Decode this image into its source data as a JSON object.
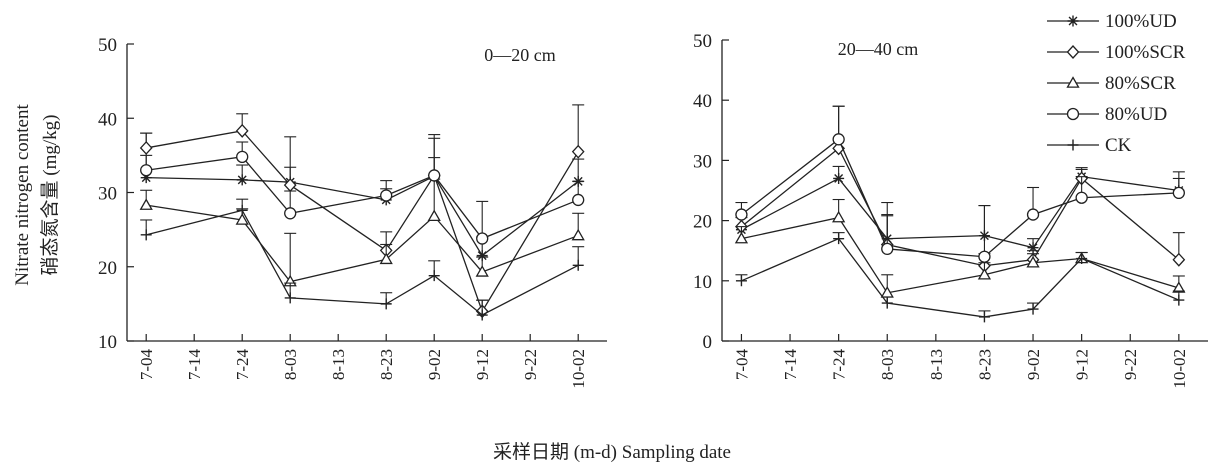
{
  "figure": {
    "ylabel_en": "Nitrate nitrogen content",
    "ylabel_cn": "硝态氮含量 (mg/kg)",
    "xlabel": "采样日期 (m-d) Sampling date"
  },
  "legend": [
    {
      "name": "100%UD",
      "marker": "asterisk"
    },
    {
      "name": "100%SCR",
      "marker": "diamond"
    },
    {
      "name": "80%SCR",
      "marker": "triangle"
    },
    {
      "name": "80%UD",
      "marker": "circle"
    },
    {
      "name": "CK",
      "marker": "plus"
    }
  ],
  "chart_data": [
    {
      "type": "line",
      "annotation": "0—20 cm",
      "x": [
        "7-04",
        "7-14",
        "7-24",
        "8-03",
        "8-13",
        "8-23",
        "9-02",
        "9-12",
        "9-22",
        "10-02"
      ],
      "ylim": [
        10,
        50
      ],
      "yticks": [
        10,
        20,
        30,
        40,
        50
      ],
      "series": [
        {
          "name": "100%UD",
          "marker": "asterisk",
          "points": [
            [
              "7-04",
              32
            ],
            [
              "7-24",
              31.7
            ],
            [
              "8-03",
              31.4
            ],
            [
              "8-23",
              29
            ],
            [
              "9-02",
              32.2
            ],
            [
              "9-12",
              21.5
            ],
            [
              "10-02",
              31.5
            ]
          ],
          "err": [
            6,
            2,
            2,
            1.5,
            2.5,
            2.5,
            3
          ]
        },
        {
          "name": "100%SCR",
          "marker": "diamond",
          "points": [
            [
              "7-04",
              36
            ],
            [
              "7-24",
              38.3
            ],
            [
              "8-03",
              31
            ],
            [
              "8-23",
              22.2
            ],
            [
              "9-02",
              32.3
            ],
            [
              "9-12",
              14
            ],
            [
              "10-02",
              35.5
            ]
          ],
          "err": [
            2,
            2.3,
            6.5,
            2.5,
            5.5,
            1.5,
            6.3
          ]
        },
        {
          "name": "80%SCR",
          "marker": "triangle",
          "points": [
            [
              "7-04",
              28.3
            ],
            [
              "7-24",
              26.3
            ],
            [
              "8-03",
              18
            ],
            [
              "8-23",
              21
            ],
            [
              "9-02",
              26.8
            ],
            [
              "9-12",
              19.3
            ],
            [
              "10-02",
              24.2
            ]
          ],
          "err": [
            2,
            1.5,
            6.5,
            2,
            5,
            2,
            3
          ]
        },
        {
          "name": "80%UD",
          "marker": "circle",
          "points": [
            [
              "7-04",
              33
            ],
            [
              "7-24",
              34.8
            ],
            [
              "8-03",
              27.2
            ],
            [
              "8-23",
              29.6
            ],
            [
              "9-02",
              32.3
            ],
            [
              "9-12",
              23.8
            ],
            [
              "10-02",
              29
            ]
          ],
          "err": [
            2,
            2,
            3,
            2,
            5,
            5,
            2.5
          ]
        },
        {
          "name": "CK",
          "marker": "plus",
          "points": [
            [
              "7-04",
              24.3
            ],
            [
              "7-24",
              27.6
            ],
            [
              "8-03",
              15.8
            ],
            [
              "8-23",
              15
            ],
            [
              "9-02",
              18.8
            ],
            [
              "9-12",
              13.5
            ],
            [
              "10-02",
              20.2
            ]
          ],
          "err": [
            2,
            1.5,
            2,
            1.5,
            2,
            2,
            2.5
          ]
        }
      ]
    },
    {
      "type": "line",
      "annotation": "20—40 cm",
      "x": [
        "7-04",
        "7-14",
        "7-24",
        "8-03",
        "8-13",
        "8-23",
        "9-02",
        "9-12",
        "9-22",
        "10-02"
      ],
      "ylim": [
        0,
        50
      ],
      "yticks": [
        0,
        10,
        20,
        30,
        40,
        50
      ],
      "series": [
        {
          "name": "100%UD",
          "marker": "asterisk",
          "points": [
            [
              "7-04",
              18.5
            ],
            [
              "7-24",
              27
            ],
            [
              "8-03",
              17
            ],
            [
              "8-23",
              17.5
            ],
            [
              "9-02",
              15.5
            ],
            [
              "9-12",
              27.3
            ],
            [
              "10-02",
              25
            ]
          ],
          "err": [
            2,
            2,
            6,
            5,
            1.5,
            1.5,
            2
          ]
        },
        {
          "name": "100%SCR",
          "marker": "diamond",
          "points": [
            [
              "7-04",
              19
            ],
            [
              "7-24",
              32
            ],
            [
              "8-03",
              16
            ],
            [
              "8-23",
              12.5
            ],
            [
              "9-02",
              13.5
            ],
            [
              "9-12",
              27
            ],
            [
              "10-02",
              13.5
            ]
          ],
          "err": [
            2,
            7,
            5,
            2,
            1.5,
            1.5,
            4.5
          ]
        },
        {
          "name": "80%SCR",
          "marker": "triangle",
          "points": [
            [
              "7-04",
              17
            ],
            [
              "7-24",
              20.5
            ],
            [
              "8-03",
              8
            ],
            [
              "8-23",
              11
            ],
            [
              "9-02",
              13
            ],
            [
              "9-12",
              13.7
            ],
            [
              "10-02",
              8.8
            ]
          ],
          "err": [
            2,
            3,
            3,
            2,
            1.5,
            1,
            2
          ]
        },
        {
          "name": "80%UD",
          "marker": "circle",
          "points": [
            [
              "7-04",
              21
            ],
            [
              "7-24",
              33.5
            ],
            [
              "8-03",
              15.3
            ],
            [
              "8-23",
              14
            ],
            [
              "9-02",
              21
            ],
            [
              "9-12",
              23.8
            ],
            [
              "10-02",
              24.6
            ]
          ],
          "err": [
            2,
            5.5,
            5.5,
            8.5,
            4.5,
            3.5,
            3.5
          ]
        },
        {
          "name": "CK",
          "marker": "plus",
          "points": [
            [
              "7-04",
              10
            ],
            [
              "7-24",
              17
            ],
            [
              "8-03",
              6.3
            ],
            [
              "8-23",
              4
            ],
            [
              "9-02",
              5.3
            ],
            [
              "9-12",
              13.7
            ],
            [
              "10-02",
              6.8
            ]
          ],
          "err": [
            1,
            1,
            1,
            1,
            1,
            1,
            1.5
          ]
        }
      ]
    }
  ]
}
